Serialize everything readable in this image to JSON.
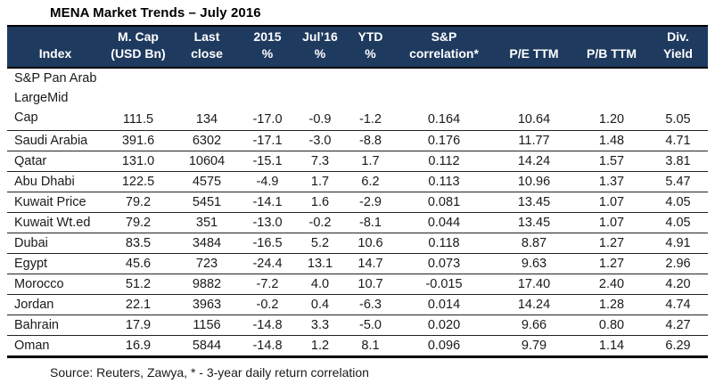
{
  "title": "MENA Market Trends – July 2016",
  "source_note": "Source: Reuters, Zawya, * - 3-year daily return correlation",
  "colors": {
    "header_bg": "#1F3A5F",
    "header_text": "#FFFFFF",
    "body_text": "#1A1A1A",
    "row_rule": "#222222",
    "outer_rule": "#000000"
  },
  "chart_data": {
    "type": "table",
    "title": "MENA Market Trends – July 2016",
    "columns": [
      {
        "id": "index",
        "line1": "",
        "line2": "Index"
      },
      {
        "id": "mcap",
        "line1": "M. Cap",
        "line2": "(USD Bn)"
      },
      {
        "id": "last-close",
        "line1": "Last",
        "line2": "close"
      },
      {
        "id": "pct-2015",
        "line1": "2015",
        "line2": "%"
      },
      {
        "id": "pct-jul16",
        "line1": "Jul’16",
        "line2": "%"
      },
      {
        "id": "pct-ytd",
        "line1": "YTD",
        "line2": "%"
      },
      {
        "id": "sp-corr",
        "line1": "S&P",
        "line2": "correlation*"
      },
      {
        "id": "pe-ttm",
        "line1": "",
        "line2": "P/E TTM"
      },
      {
        "id": "pb-ttm",
        "line1": "",
        "line2": "P/B TTM"
      },
      {
        "id": "div-yield",
        "line1": "Div.",
        "line2": "Yield"
      }
    ],
    "rows": [
      [
        "S&P Pan Arab\nLargeMid\nCap",
        "111.5",
        "134",
        "-17.0",
        "-0.9",
        "-1.2",
        "0.164",
        "10.64",
        "1.20",
        "5.05"
      ],
      [
        "Saudi Arabia",
        "391.6",
        "6302",
        "-17.1",
        "-3.0",
        "-8.8",
        "0.176",
        "11.77",
        "1.48",
        "4.71"
      ],
      [
        "Qatar",
        "131.0",
        "10604",
        "-15.1",
        "7.3",
        "1.7",
        "0.112",
        "14.24",
        "1.57",
        "3.81"
      ],
      [
        "Abu Dhabi",
        "122.5",
        "4575",
        "-4.9",
        "1.7",
        "6.2",
        "0.113",
        "10.96",
        "1.37",
        "5.47"
      ],
      [
        "Kuwait Price",
        "79.2",
        "5451",
        "-14.1",
        "1.6",
        "-2.9",
        "0.081",
        "13.45",
        "1.07",
        "4.05"
      ],
      [
        "Kuwait Wt.ed",
        "79.2",
        "351",
        "-13.0",
        "-0.2",
        "-8.1",
        "0.044",
        "13.45",
        "1.07",
        "4.05"
      ],
      [
        "Dubai",
        "83.5",
        "3484",
        "-16.5",
        "5.2",
        "10.6",
        "0.118",
        "8.87",
        "1.27",
        "4.91"
      ],
      [
        "Egypt",
        "45.6",
        "723",
        "-24.4",
        "13.1",
        "14.7",
        "0.073",
        "9.63",
        "1.27",
        "2.96"
      ],
      [
        "Morocco",
        "51.2",
        "9882",
        "-7.2",
        "4.0",
        "10.7",
        "-0.015",
        "17.40",
        "2.40",
        "4.20"
      ],
      [
        "Jordan",
        "22.1",
        "3963",
        "-0.2",
        "0.4",
        "-6.3",
        "0.014",
        "14.24",
        "1.28",
        "4.74"
      ],
      [
        "Bahrain",
        "17.9",
        "1156",
        "-14.8",
        "3.3",
        "-5.0",
        "0.020",
        "9.66",
        "0.80",
        "4.27"
      ],
      [
        "Oman",
        "16.9",
        "5844",
        "-14.8",
        "1.2",
        "8.1",
        "0.096",
        "9.79",
        "1.14",
        "6.29"
      ]
    ]
  }
}
